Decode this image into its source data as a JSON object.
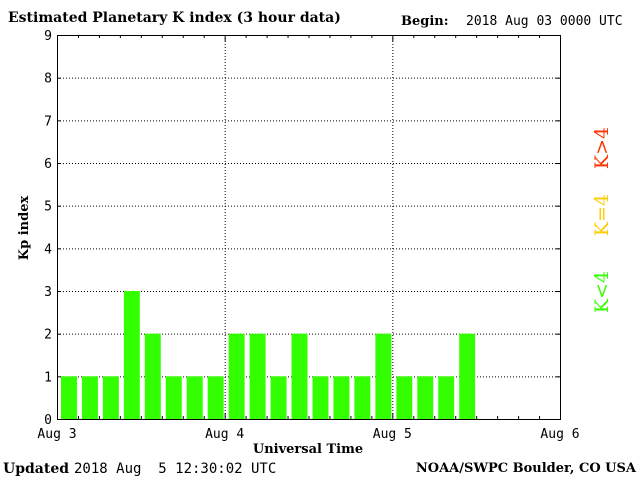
{
  "header": {
    "title": "Estimated Planetary K index (3 hour data)",
    "begin_label": "Begin:",
    "begin_value": "2018 Aug 03 0000 UTC"
  },
  "footer": {
    "updated_label": "Updated",
    "updated_value": "2018 Aug  5 12:30:02 UTC",
    "credit": "NOAA/SWPC Boulder, CO USA"
  },
  "legend": [
    {
      "label": "K>4",
      "color": "#ff3300"
    },
    {
      "label": "K=4",
      "color": "#ffcc00"
    },
    {
      "label": "K<4",
      "color": "#33ff00"
    }
  ],
  "chart_data": {
    "type": "bar",
    "title": "Estimated Planetary K index (3 hour data)",
    "xlabel": "Universal Time",
    "ylabel": "Kp index",
    "ylim": [
      0,
      9
    ],
    "yticks": [
      "0",
      "1",
      "2",
      "3",
      "4",
      "5",
      "6",
      "7",
      "8",
      "9"
    ],
    "xticks": [
      "Aug 3",
      "Aug 4",
      "Aug 5",
      "Aug 6"
    ],
    "bars_per_day": 8,
    "grid": true,
    "bar_color": "#33ff00",
    "values": [
      1,
      1,
      1,
      3,
      2,
      1,
      1,
      1,
      2,
      2,
      1,
      2,
      1,
      1,
      1,
      2,
      1,
      1,
      1,
      2
    ]
  }
}
